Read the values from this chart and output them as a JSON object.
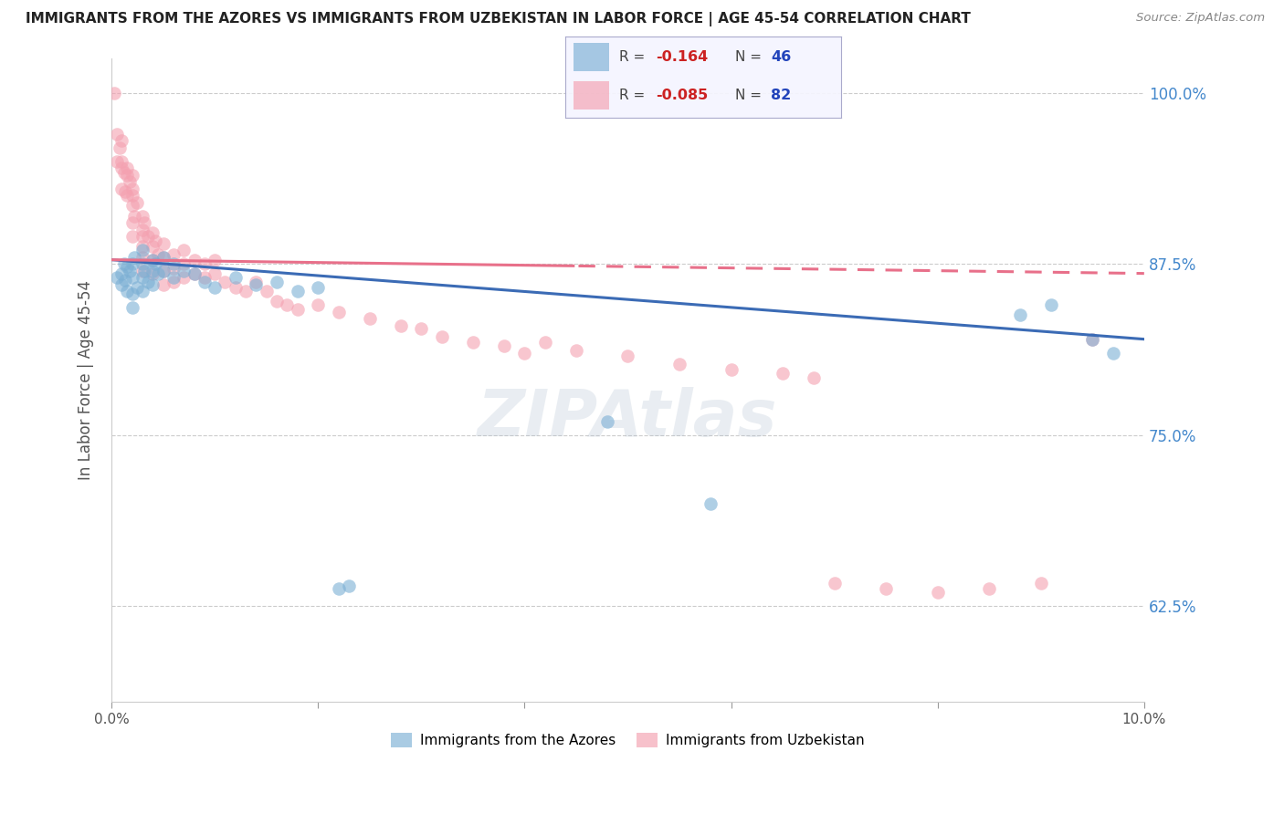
{
  "title": "IMMIGRANTS FROM THE AZORES VS IMMIGRANTS FROM UZBEKISTAN IN LABOR FORCE | AGE 45-54 CORRELATION CHART",
  "source": "Source: ZipAtlas.com",
  "ylabel": "In Labor Force | Age 45-54",
  "y_ticks": [
    0.625,
    0.75,
    0.875,
    1.0
  ],
  "y_tick_labels": [
    "62.5%",
    "75.0%",
    "87.5%",
    "100.0%"
  ],
  "x_min": 0.0,
  "x_max": 0.1,
  "y_min": 0.555,
  "y_max": 1.025,
  "azores_R": -0.164,
  "azores_N": 46,
  "uzbekistan_R": -0.085,
  "uzbekistan_N": 82,
  "azores_color": "#7BAFD4",
  "uzbekistan_color": "#F4A0B0",
  "azores_line_color": "#3B6BB5",
  "uzbekistan_line_color": "#E8708A",
  "azores_x": [
    0.0005,
    0.001,
    0.001,
    0.0012,
    0.0013,
    0.0015,
    0.0015,
    0.0018,
    0.002,
    0.002,
    0.002,
    0.002,
    0.0022,
    0.0025,
    0.003,
    0.003,
    0.003,
    0.003,
    0.0032,
    0.0035,
    0.004,
    0.004,
    0.004,
    0.0042,
    0.0045,
    0.005,
    0.005,
    0.006,
    0.006,
    0.007,
    0.008,
    0.009,
    0.01,
    0.012,
    0.014,
    0.016,
    0.018,
    0.02,
    0.022,
    0.023,
    0.048,
    0.058,
    0.088,
    0.091,
    0.095,
    0.097
  ],
  "azores_y": [
    0.865,
    0.868,
    0.86,
    0.875,
    0.863,
    0.873,
    0.855,
    0.87,
    0.875,
    0.865,
    0.853,
    0.843,
    0.88,
    0.858,
    0.885,
    0.875,
    0.865,
    0.855,
    0.87,
    0.862,
    0.878,
    0.87,
    0.86,
    0.875,
    0.868,
    0.88,
    0.87,
    0.875,
    0.865,
    0.87,
    0.868,
    0.862,
    0.858,
    0.865,
    0.86,
    0.862,
    0.855,
    0.858,
    0.638,
    0.64,
    0.76,
    0.7,
    0.838,
    0.845,
    0.82,
    0.81
  ],
  "uzbekistan_x": [
    0.0003,
    0.0005,
    0.0005,
    0.0008,
    0.001,
    0.001,
    0.001,
    0.001,
    0.0012,
    0.0013,
    0.0015,
    0.0015,
    0.0015,
    0.0018,
    0.002,
    0.002,
    0.002,
    0.002,
    0.002,
    0.002,
    0.0022,
    0.0025,
    0.003,
    0.003,
    0.003,
    0.003,
    0.003,
    0.003,
    0.0032,
    0.0035,
    0.004,
    0.004,
    0.004,
    0.004,
    0.0042,
    0.0045,
    0.005,
    0.005,
    0.005,
    0.005,
    0.006,
    0.006,
    0.006,
    0.007,
    0.007,
    0.007,
    0.008,
    0.008,
    0.009,
    0.009,
    0.01,
    0.01,
    0.011,
    0.012,
    0.013,
    0.014,
    0.015,
    0.016,
    0.017,
    0.018,
    0.02,
    0.022,
    0.025,
    0.028,
    0.03,
    0.032,
    0.035,
    0.038,
    0.04,
    0.042,
    0.045,
    0.05,
    0.055,
    0.06,
    0.065,
    0.068,
    0.07,
    0.075,
    0.08,
    0.085,
    0.09,
    0.095
  ],
  "uzbekistan_y": [
    1.0,
    0.97,
    0.95,
    0.96,
    0.945,
    0.965,
    0.93,
    0.95,
    0.942,
    0.928,
    0.945,
    0.925,
    0.94,
    0.935,
    0.94,
    0.925,
    0.93,
    0.918,
    0.905,
    0.895,
    0.91,
    0.92,
    0.91,
    0.9,
    0.895,
    0.888,
    0.88,
    0.87,
    0.905,
    0.895,
    0.898,
    0.888,
    0.878,
    0.868,
    0.892,
    0.882,
    0.89,
    0.88,
    0.87,
    0.86,
    0.882,
    0.872,
    0.862,
    0.885,
    0.875,
    0.865,
    0.878,
    0.868,
    0.875,
    0.865,
    0.878,
    0.868,
    0.862,
    0.858,
    0.855,
    0.862,
    0.855,
    0.848,
    0.845,
    0.842,
    0.845,
    0.84,
    0.835,
    0.83,
    0.828,
    0.822,
    0.818,
    0.815,
    0.81,
    0.818,
    0.812,
    0.808,
    0.802,
    0.798,
    0.795,
    0.792,
    0.642,
    0.638,
    0.635,
    0.638,
    0.642,
    0.82
  ]
}
